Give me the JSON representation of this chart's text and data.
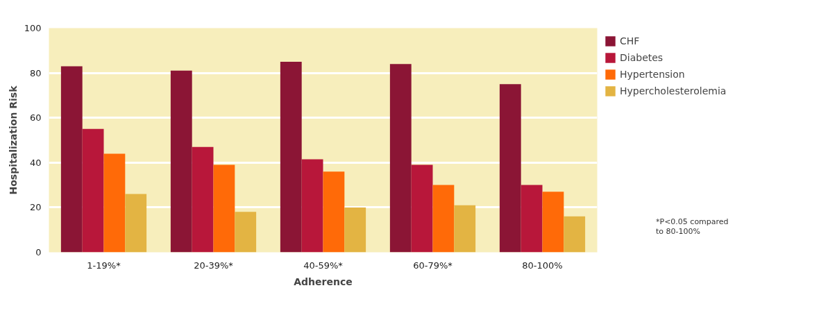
{
  "chart_data": {
    "type": "bar",
    "xlabel": "Adherence",
    "ylabel": "Hospitalization Risk",
    "categories": [
      "1-19%*",
      "20-39%*",
      "40-59%*",
      "60-79%*",
      "80-100%"
    ],
    "series": [
      {
        "name": "CHF",
        "color": "#8b1535",
        "values": [
          83,
          81,
          85,
          84,
          75
        ]
      },
      {
        "name": "Diabetes",
        "color": "#b8173a",
        "values": [
          55,
          47,
          41.5,
          39,
          30
        ]
      },
      {
        "name": "Hypertension",
        "color": "#ff6a08",
        "values": [
          44,
          39,
          36,
          30,
          27
        ]
      },
      {
        "name": "Hypercholesterolemia",
        "color": "#e3b443",
        "values": [
          26,
          18,
          20,
          21,
          16
        ]
      }
    ],
    "ylim": [
      0,
      100
    ],
    "yticks": [
      0,
      20,
      40,
      60,
      80,
      100
    ],
    "grid": "y",
    "legend": "top right",
    "annotations": [
      "*P<0.05 compared\nto 80-100%"
    ]
  }
}
